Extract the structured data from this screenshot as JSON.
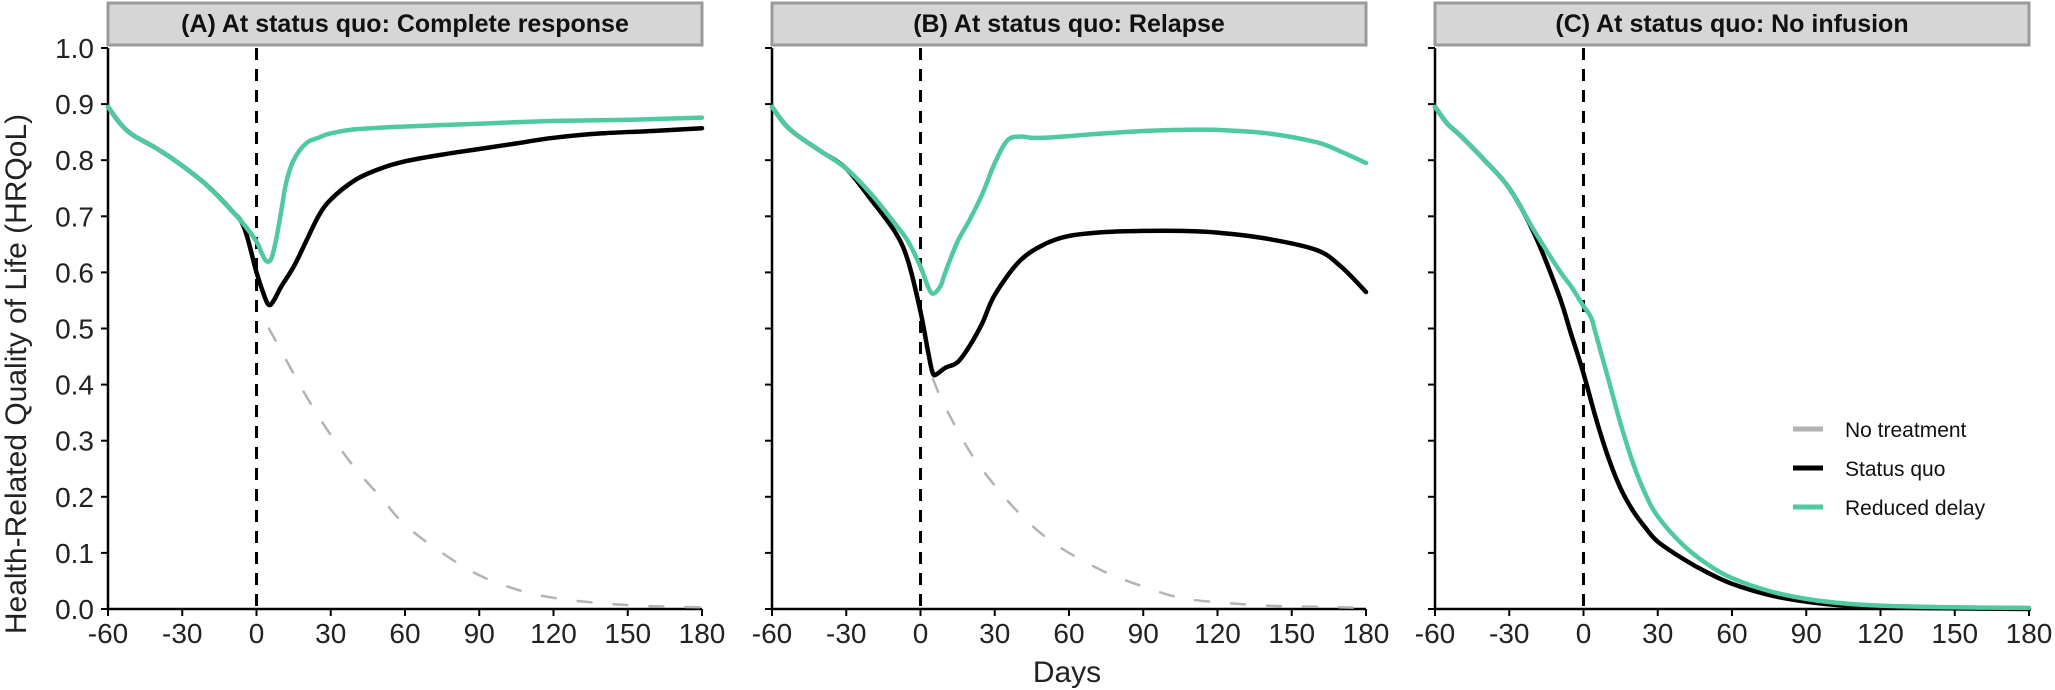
{
  "chart_data": {
    "type": "line",
    "xlabel": "Days",
    "ylabel": "Health-Related Quality of Life (HRQoL)",
    "xlim": [
      -60,
      180
    ],
    "ylim": [
      0,
      1.0
    ],
    "x_ticks": [
      -60,
      -30,
      0,
      30,
      60,
      90,
      120,
      150,
      180
    ],
    "x_tick_labels": [
      "-60",
      "-30",
      "0",
      "30",
      "60",
      "90",
      "120",
      "150",
      "180"
    ],
    "y_ticks": [
      0.0,
      0.1,
      0.2,
      0.3,
      0.4,
      0.5,
      0.6,
      0.7,
      0.8,
      0.9,
      1.0
    ],
    "y_tick_labels": [
      "0.0",
      "0.1",
      "0.2",
      "0.3",
      "0.4",
      "0.5",
      "0.6",
      "0.7",
      "0.8",
      "0.9",
      "1.0"
    ],
    "reference_line_x": 0,
    "legend": {
      "position": "right",
      "entries": [
        {
          "label": "No treatment",
          "color": "#b3b3b3"
        },
        {
          "label": "Status quo",
          "color": "#000000"
        },
        {
          "label": "Reduced delay",
          "color": "#4fc9a2"
        }
      ]
    },
    "panels": [
      {
        "title": "(A) At status quo: Complete response",
        "series": [
          {
            "name": "No treatment",
            "color": "#b3b3b3",
            "style": "dashed",
            "x": [
              5,
              10,
              20,
              30,
              40,
              50,
              60,
              75,
              90,
              105,
              120,
              140,
              160,
              180
            ],
            "y": [
              0.5,
              0.46,
              0.38,
              0.31,
              0.25,
              0.2,
              0.15,
              0.1,
              0.06,
              0.035,
              0.02,
              0.01,
              0.005,
              0.003
            ]
          },
          {
            "name": "Status quo",
            "color": "#000000",
            "style": "solid",
            "x": [
              -60,
              -55,
              -50,
              -40,
              -30,
              -20,
              -10,
              -5,
              0,
              3,
              5,
              7,
              10,
              15,
              20,
              25,
              30,
              40,
              50,
              60,
              75,
              90,
              105,
              120,
              140,
              160,
              180
            ],
            "y": [
              0.895,
              0.865,
              0.845,
              0.82,
              0.79,
              0.755,
              0.71,
              0.68,
              0.6,
              0.56,
              0.542,
              0.55,
              0.575,
              0.61,
              0.655,
              0.7,
              0.73,
              0.765,
              0.785,
              0.798,
              0.81,
              0.82,
              0.83,
              0.84,
              0.848,
              0.852,
              0.857
            ]
          },
          {
            "name": "Reduced delay",
            "color": "#4fc9a2",
            "style": "solid",
            "x": [
              -60,
              -55,
              -50,
              -40,
              -30,
              -20,
              -10,
              -5,
              0,
              2,
              4,
              6,
              8,
              10,
              12,
              15,
              20,
              25,
              30,
              40,
              60,
              90,
              120,
              150,
              180
            ],
            "y": [
              0.895,
              0.865,
              0.845,
              0.82,
              0.79,
              0.755,
              0.71,
              0.685,
              0.655,
              0.635,
              0.62,
              0.625,
              0.66,
              0.71,
              0.76,
              0.8,
              0.83,
              0.84,
              0.848,
              0.855,
              0.86,
              0.865,
              0.87,
              0.872,
              0.876
            ]
          }
        ]
      },
      {
        "title": "(B) At status quo: Relapse",
        "series": [
          {
            "name": "No treatment",
            "color": "#b3b3b3",
            "style": "dashed",
            "x": [
              5,
              10,
              20,
              30,
              40,
              50,
              60,
              75,
              90,
              105,
              120,
              140,
              160,
              180
            ],
            "y": [
              0.41,
              0.36,
              0.28,
              0.22,
              0.17,
              0.13,
              0.1,
              0.065,
              0.04,
              0.02,
              0.012,
              0.006,
              0.004,
              0.002
            ]
          },
          {
            "name": "Status quo",
            "color": "#000000",
            "style": "solid",
            "x": [
              -60,
              -55,
              -50,
              -40,
              -30,
              -20,
              -10,
              -5,
              0,
              3,
              5,
              7,
              10,
              15,
              20,
              25,
              30,
              40,
              50,
              60,
              75,
              90,
              105,
              120,
              140,
              160,
              170,
              180
            ],
            "y": [
              0.895,
              0.865,
              0.845,
              0.815,
              0.785,
              0.73,
              0.67,
              0.62,
              0.53,
              0.46,
              0.42,
              0.42,
              0.43,
              0.44,
              0.47,
              0.51,
              0.56,
              0.62,
              0.65,
              0.665,
              0.672,
              0.674,
              0.674,
              0.671,
              0.66,
              0.64,
              0.61,
              0.565
            ]
          },
          {
            "name": "Reduced delay",
            "color": "#4fc9a2",
            "style": "solid",
            "x": [
              -60,
              -55,
              -50,
              -40,
              -30,
              -20,
              -10,
              -5,
              0,
              3,
              5,
              8,
              10,
              15,
              20,
              25,
              30,
              35,
              40,
              45,
              50,
              60,
              75,
              90,
              105,
              120,
              140,
              160,
              170,
              180
            ],
            "y": [
              0.895,
              0.865,
              0.845,
              0.815,
              0.785,
              0.74,
              0.685,
              0.655,
              0.61,
              0.575,
              0.562,
              0.575,
              0.6,
              0.655,
              0.695,
              0.74,
              0.795,
              0.835,
              0.842,
              0.84,
              0.84,
              0.843,
              0.848,
              0.852,
              0.854,
              0.854,
              0.848,
              0.832,
              0.815,
              0.795
            ]
          }
        ]
      },
      {
        "title": "(C) At status quo: No infusion",
        "series": [
          {
            "name": "Status quo",
            "color": "#000000",
            "style": "solid",
            "x": [
              -60,
              -55,
              -50,
              -40,
              -30,
              -20,
              -10,
              -5,
              0,
              5,
              10,
              15,
              20,
              25,
              30,
              40,
              50,
              60,
              75,
              90,
              105,
              120,
              150,
              180
            ],
            "y": [
              0.895,
              0.865,
              0.845,
              0.8,
              0.75,
              0.67,
              0.56,
              0.49,
              0.42,
              0.34,
              0.27,
              0.215,
              0.175,
              0.145,
              0.12,
              0.09,
              0.065,
              0.045,
              0.025,
              0.013,
              0.006,
              0.003,
              0.001,
              0.0
            ]
          },
          {
            "name": "Reduced delay",
            "color": "#4fc9a2",
            "style": "solid",
            "x": [
              -60,
              -55,
              -50,
              -40,
              -30,
              -20,
              -10,
              -5,
              0,
              3,
              5,
              10,
              15,
              20,
              25,
              30,
              40,
              50,
              60,
              75,
              90,
              105,
              120,
              150,
              180
            ],
            "y": [
              0.895,
              0.865,
              0.845,
              0.8,
              0.75,
              0.675,
              0.605,
              0.575,
              0.54,
              0.52,
              0.49,
              0.41,
              0.33,
              0.26,
              0.205,
              0.165,
              0.115,
              0.08,
              0.055,
              0.032,
              0.018,
              0.01,
              0.006,
              0.003,
              0.002
            ]
          }
        ]
      }
    ]
  }
}
